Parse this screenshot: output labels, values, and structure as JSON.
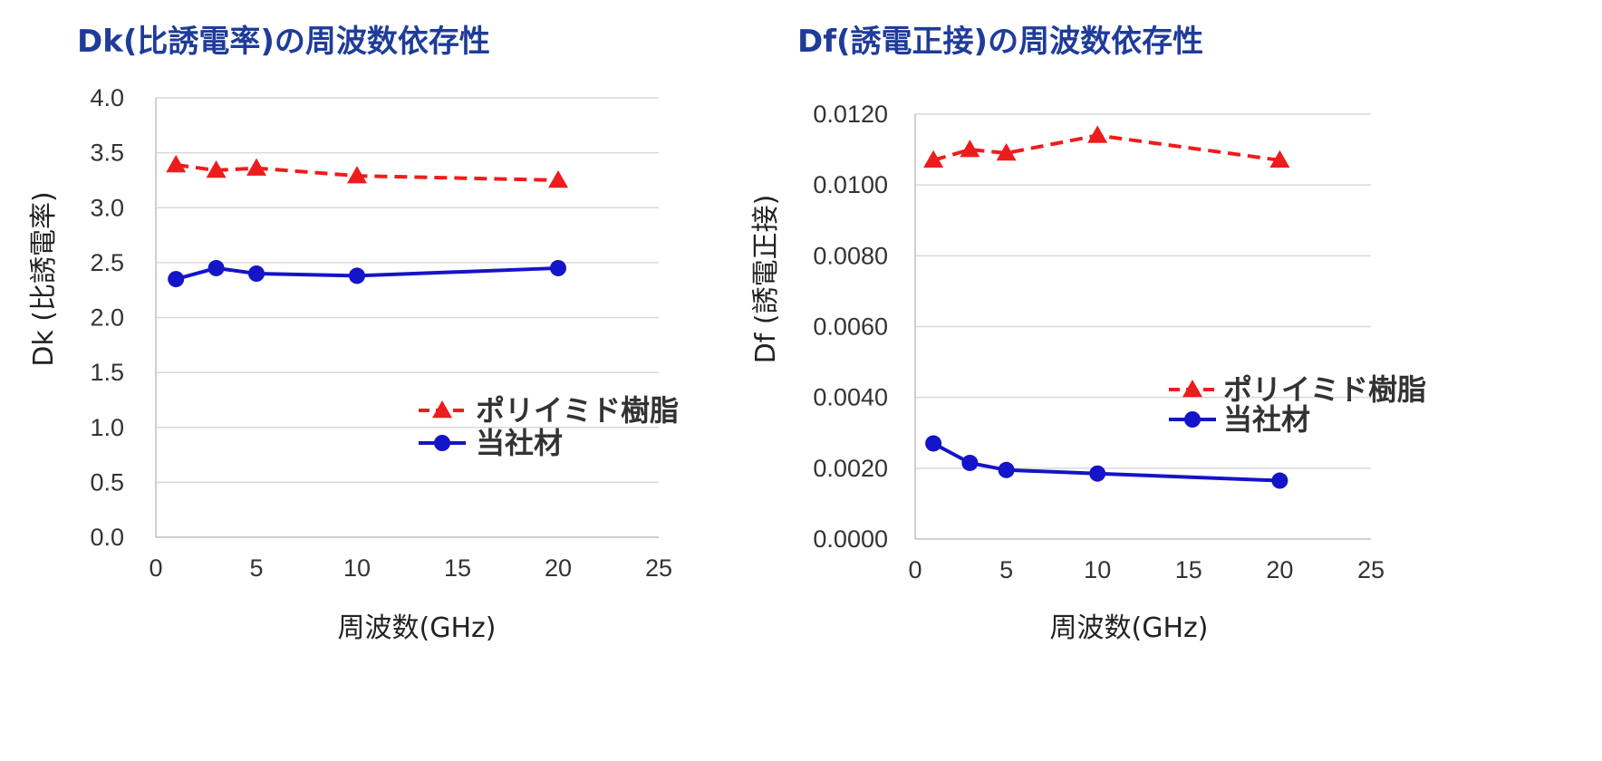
{
  "chart_data": [
    {
      "type": "line",
      "title": "Dk(比誘電率)の周波数依存性",
      "xlabel": "周波数(GHz)",
      "ylabel": "Dk (比誘電率)",
      "xlim": [
        0,
        25
      ],
      "ylim": [
        0,
        4.0
      ],
      "x_ticks": [
        "0",
        "5",
        "10",
        "15",
        "20",
        "25"
      ],
      "y_ticks": [
        "0.0",
        "0.5",
        "1.0",
        "1.5",
        "2.0",
        "2.5",
        "3.0",
        "3.5",
        "4.0"
      ],
      "grid": "horizontal",
      "legend_position": "lower-right",
      "series": [
        {
          "name": "ポリイミド樹脂",
          "color": "#ee1c1c",
          "style": "dashed",
          "marker": "triangle",
          "x": [
            1,
            3,
            5,
            10,
            20
          ],
          "values": [
            3.39,
            3.34,
            3.36,
            3.29,
            3.25
          ]
        },
        {
          "name": "当社材",
          "color": "#1414c8",
          "style": "solid",
          "marker": "circle",
          "x": [
            1,
            3,
            5,
            10,
            20
          ],
          "values": [
            2.35,
            2.45,
            2.4,
            2.38,
            2.45
          ]
        }
      ]
    },
    {
      "type": "line",
      "title": "Df(誘電正接)の周波数依存性",
      "xlabel": "周波数(GHz)",
      "ylabel": "Df (誘電正接)",
      "xlim": [
        0,
        25
      ],
      "ylim": [
        0,
        0.012
      ],
      "x_ticks": [
        "0",
        "5",
        "10",
        "15",
        "20",
        "25"
      ],
      "y_ticks": [
        "0.0000",
        "0.0020",
        "0.0040",
        "0.0060",
        "0.0080",
        "0.0100",
        "0.0120"
      ],
      "grid": "horizontal",
      "legend_position": "right",
      "series": [
        {
          "name": "ポリイミド樹脂",
          "color": "#ee1c1c",
          "style": "dashed",
          "marker": "triangle",
          "x": [
            1,
            3,
            5,
            10,
            20
          ],
          "values": [
            0.0107,
            0.011,
            0.0109,
            0.0114,
            0.0107
          ]
        },
        {
          "name": "当社材",
          "color": "#1414c8",
          "style": "solid",
          "marker": "circle",
          "x": [
            1,
            3,
            5,
            10,
            20
          ],
          "values": [
            0.0027,
            0.00215,
            0.00195,
            0.00185,
            0.00165
          ]
        }
      ]
    }
  ]
}
